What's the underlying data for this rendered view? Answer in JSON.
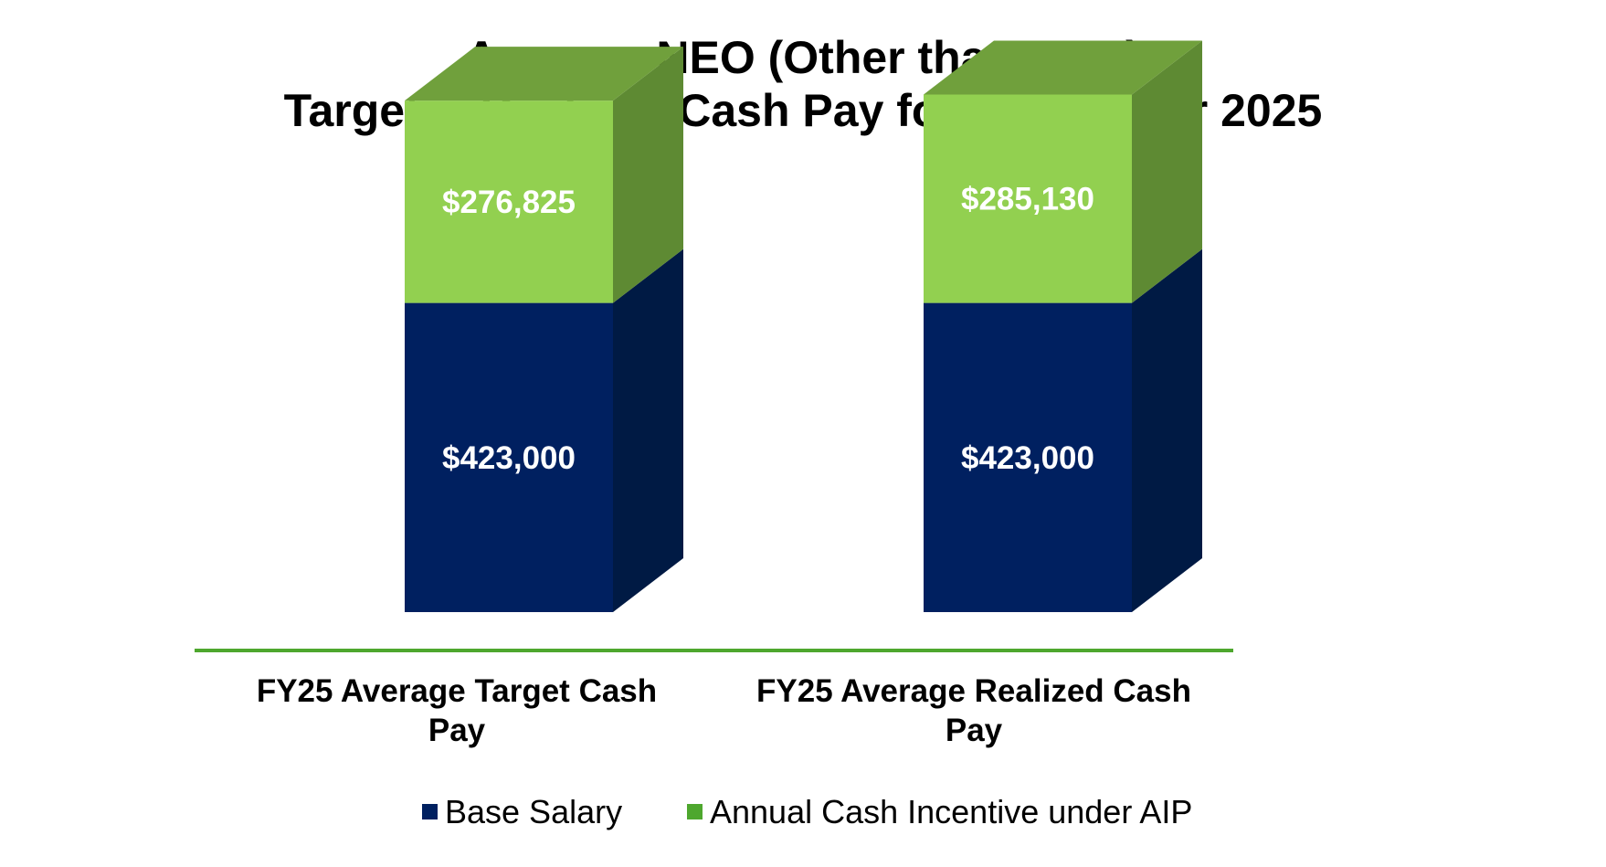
{
  "chart_data": {
    "type": "bar",
    "stacked": true,
    "title": "Average NEO (Other than CEO)\nTarget v. Realized Cash Pay for Fiscal Year 2025",
    "title_lines": [
      "Average NEO (Other than CEO)",
      "Target v. Realized Cash Pay for Fiscal Year 2025"
    ],
    "categories": [
      "FY25 Average Target Cash Pay",
      "FY25 Average Realized Cash Pay"
    ],
    "category_label_lines": [
      [
        "FY25 Average Target Cash",
        "Pay"
      ],
      [
        "FY25 Average Realized Cash",
        "Pay"
      ]
    ],
    "series": [
      {
        "name": "Base Salary",
        "values": [
          423000,
          423000
        ],
        "labels": [
          "$423,000",
          "$423,000"
        ],
        "color": "#002060",
        "side_color": "#001a44"
      },
      {
        "name": "Annual Cash Incentive under AIP",
        "values": [
          276825,
          285130
        ],
        "labels": [
          "$276,825",
          "$285,130"
        ],
        "color": "#92d050",
        "legend_color": "#4ea72e",
        "top_color": "#70a03c",
        "side_color": "#5e8a33"
      }
    ],
    "ylim": [
      0,
      750000
    ],
    "xlabel": "",
    "ylabel": "",
    "grid": false,
    "legend_position": "bottom",
    "axis_color": "#4ea72e"
  }
}
